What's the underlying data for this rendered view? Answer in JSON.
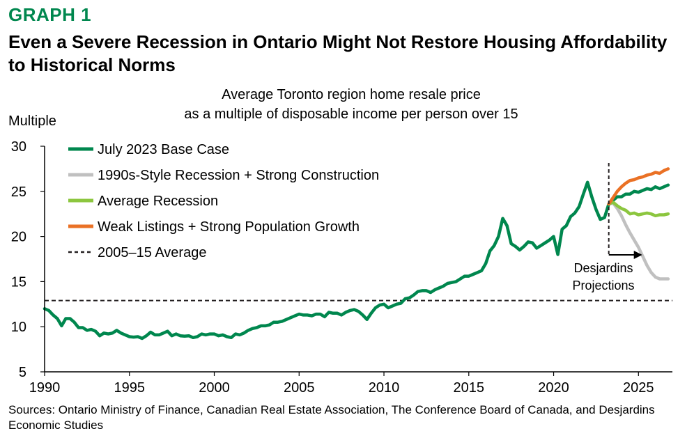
{
  "header": {
    "graph_label": "GRAPH 1",
    "headline": "Even a Severe Recession in Ontario Might Not Restore Housing Affordability to Historical Norms"
  },
  "chart_data": {
    "type": "line",
    "subtitle_lines": [
      "Average Toronto region home resale price",
      "as a multiple of disposable income per person over 15"
    ],
    "ylabel": "Multiple",
    "xlim": [
      1990,
      2027
    ],
    "ylim": [
      5,
      30
    ],
    "x_ticks": [
      1990,
      1995,
      2000,
      2005,
      2010,
      2015,
      2020,
      2025
    ],
    "y_ticks": [
      5,
      10,
      15,
      20,
      25,
      30
    ],
    "grid": false,
    "legend_position": "top-left",
    "reference_line": {
      "name": "2005–15 Average",
      "value": 12.9,
      "style": "dashed",
      "color": "#231f20"
    },
    "projection_marker": {
      "x": 2023.25,
      "label_lines": [
        "Desjardins",
        "Projections"
      ]
    },
    "series": [
      {
        "name": "July 2023 Base Case",
        "color": "#00874e",
        "points": [
          [
            1990.0,
            12.0
          ],
          [
            1990.25,
            11.8
          ],
          [
            1990.5,
            11.3
          ],
          [
            1990.75,
            10.9
          ],
          [
            1991.0,
            10.1
          ],
          [
            1991.25,
            10.9
          ],
          [
            1991.5,
            10.9
          ],
          [
            1991.75,
            10.5
          ],
          [
            1992.0,
            9.9
          ],
          [
            1992.25,
            9.9
          ],
          [
            1992.5,
            9.6
          ],
          [
            1992.75,
            9.7
          ],
          [
            1993.0,
            9.5
          ],
          [
            1993.25,
            9.0
          ],
          [
            1993.5,
            9.3
          ],
          [
            1993.75,
            9.2
          ],
          [
            1994.0,
            9.3
          ],
          [
            1994.25,
            9.6
          ],
          [
            1994.5,
            9.3
          ],
          [
            1994.75,
            9.1
          ],
          [
            1995.0,
            8.9
          ],
          [
            1995.25,
            8.85
          ],
          [
            1995.5,
            8.9
          ],
          [
            1995.75,
            8.7
          ],
          [
            1996.0,
            9.0
          ],
          [
            1996.25,
            9.4
          ],
          [
            1996.5,
            9.1
          ],
          [
            1996.75,
            9.1
          ],
          [
            1997.0,
            9.3
          ],
          [
            1997.25,
            9.5
          ],
          [
            1997.5,
            9.0
          ],
          [
            1997.75,
            9.2
          ],
          [
            1998.0,
            9.0
          ],
          [
            1998.25,
            8.95
          ],
          [
            1998.5,
            9.0
          ],
          [
            1998.75,
            8.8
          ],
          [
            1999.0,
            8.9
          ],
          [
            1999.25,
            9.2
          ],
          [
            1999.5,
            9.1
          ],
          [
            1999.75,
            9.2
          ],
          [
            2000.0,
            9.2
          ],
          [
            2000.25,
            9.0
          ],
          [
            2000.5,
            9.1
          ],
          [
            2000.75,
            8.9
          ],
          [
            2001.0,
            8.8
          ],
          [
            2001.25,
            9.2
          ],
          [
            2001.5,
            9.1
          ],
          [
            2001.75,
            9.3
          ],
          [
            2002.0,
            9.6
          ],
          [
            2002.25,
            9.8
          ],
          [
            2002.5,
            9.9
          ],
          [
            2002.75,
            10.1
          ],
          [
            2003.0,
            10.1
          ],
          [
            2003.25,
            10.2
          ],
          [
            2003.5,
            10.5
          ],
          [
            2003.75,
            10.5
          ],
          [
            2004.0,
            10.6
          ],
          [
            2004.25,
            10.8
          ],
          [
            2004.5,
            11.0
          ],
          [
            2004.75,
            11.2
          ],
          [
            2005.0,
            11.4
          ],
          [
            2005.25,
            11.3
          ],
          [
            2005.5,
            11.3
          ],
          [
            2005.75,
            11.2
          ],
          [
            2006.0,
            11.4
          ],
          [
            2006.25,
            11.4
          ],
          [
            2006.5,
            11.1
          ],
          [
            2006.75,
            11.6
          ],
          [
            2007.0,
            11.5
          ],
          [
            2007.25,
            11.5
          ],
          [
            2007.5,
            11.3
          ],
          [
            2007.75,
            11.6
          ],
          [
            2008.0,
            11.8
          ],
          [
            2008.25,
            11.9
          ],
          [
            2008.5,
            11.7
          ],
          [
            2008.75,
            11.3
          ],
          [
            2009.0,
            10.8
          ],
          [
            2009.25,
            11.5
          ],
          [
            2009.5,
            12.1
          ],
          [
            2009.75,
            12.4
          ],
          [
            2010.0,
            12.5
          ],
          [
            2010.25,
            12.1
          ],
          [
            2010.5,
            12.3
          ],
          [
            2010.75,
            12.5
          ],
          [
            2011.0,
            12.6
          ],
          [
            2011.25,
            13.1
          ],
          [
            2011.5,
            13.2
          ],
          [
            2011.75,
            13.5
          ],
          [
            2012.0,
            13.9
          ],
          [
            2012.25,
            14.0
          ],
          [
            2012.5,
            14.0
          ],
          [
            2012.75,
            13.8
          ],
          [
            2013.0,
            14.1
          ],
          [
            2013.25,
            14.3
          ],
          [
            2013.5,
            14.5
          ],
          [
            2013.75,
            14.8
          ],
          [
            2014.0,
            14.9
          ],
          [
            2014.25,
            15.0
          ],
          [
            2014.5,
            15.3
          ],
          [
            2014.75,
            15.6
          ],
          [
            2015.0,
            15.6
          ],
          [
            2015.25,
            15.8
          ],
          [
            2015.5,
            16.0
          ],
          [
            2015.75,
            16.2
          ],
          [
            2016.0,
            17.0
          ],
          [
            2016.25,
            18.4
          ],
          [
            2016.5,
            19.0
          ],
          [
            2016.75,
            20.0
          ],
          [
            2017.0,
            22.0
          ],
          [
            2017.25,
            21.2
          ],
          [
            2017.5,
            19.2
          ],
          [
            2017.75,
            18.9
          ],
          [
            2018.0,
            18.5
          ],
          [
            2018.25,
            18.9
          ],
          [
            2018.5,
            19.4
          ],
          [
            2018.75,
            19.3
          ],
          [
            2019.0,
            18.7
          ],
          [
            2019.25,
            19.0
          ],
          [
            2019.5,
            19.3
          ],
          [
            2019.75,
            19.6
          ],
          [
            2020.0,
            20.0
          ],
          [
            2020.25,
            18.0
          ],
          [
            2020.5,
            20.8
          ],
          [
            2020.75,
            21.2
          ],
          [
            2021.0,
            22.2
          ],
          [
            2021.25,
            22.6
          ],
          [
            2021.5,
            23.3
          ],
          [
            2021.75,
            24.7
          ],
          [
            2022.0,
            26.0
          ],
          [
            2022.25,
            24.4
          ],
          [
            2022.5,
            23.0
          ],
          [
            2022.75,
            21.9
          ],
          [
            2023.0,
            22.1
          ],
          [
            2023.25,
            23.6
          ],
          [
            2023.5,
            24.0
          ],
          [
            2023.75,
            24.4
          ],
          [
            2024.0,
            24.4
          ],
          [
            2024.25,
            24.7
          ],
          [
            2024.5,
            24.7
          ],
          [
            2024.75,
            25.0
          ],
          [
            2025.0,
            24.9
          ],
          [
            2025.25,
            25.1
          ],
          [
            2025.5,
            25.3
          ],
          [
            2025.75,
            25.2
          ],
          [
            2026.0,
            25.5
          ],
          [
            2026.25,
            25.3
          ],
          [
            2026.5,
            25.5
          ],
          [
            2026.75,
            25.7
          ]
        ]
      },
      {
        "name": "1990s-Style Recession + Strong Construction",
        "color": "#c0c0c0",
        "points": [
          [
            2023.25,
            23.6
          ],
          [
            2023.5,
            23.7
          ],
          [
            2023.75,
            23.1
          ],
          [
            2024.0,
            22.3
          ],
          [
            2024.25,
            21.3
          ],
          [
            2024.5,
            20.4
          ],
          [
            2024.75,
            19.6
          ],
          [
            2025.0,
            18.8
          ],
          [
            2025.25,
            17.8
          ],
          [
            2025.5,
            16.8
          ],
          [
            2025.75,
            16.0
          ],
          [
            2026.0,
            15.5
          ],
          [
            2026.25,
            15.3
          ],
          [
            2026.5,
            15.3
          ],
          [
            2026.75,
            15.3
          ]
        ]
      },
      {
        "name": "Average Recession",
        "color": "#8cc63f",
        "points": [
          [
            2023.25,
            23.6
          ],
          [
            2023.5,
            23.8
          ],
          [
            2023.75,
            23.4
          ],
          [
            2024.0,
            23.1
          ],
          [
            2024.25,
            22.9
          ],
          [
            2024.5,
            22.5
          ],
          [
            2024.75,
            22.6
          ],
          [
            2025.0,
            22.4
          ],
          [
            2025.25,
            22.5
          ],
          [
            2025.5,
            22.6
          ],
          [
            2025.75,
            22.5
          ],
          [
            2026.0,
            22.3
          ],
          [
            2026.25,
            22.4
          ],
          [
            2026.5,
            22.4
          ],
          [
            2026.75,
            22.5
          ]
        ]
      },
      {
        "name": "Weak Listings + Strong Population Growth",
        "color": "#ea7125",
        "points": [
          [
            2023.25,
            23.6
          ],
          [
            2023.5,
            24.3
          ],
          [
            2023.75,
            25.0
          ],
          [
            2024.0,
            25.5
          ],
          [
            2024.25,
            25.9
          ],
          [
            2024.5,
            26.2
          ],
          [
            2024.75,
            26.3
          ],
          [
            2025.0,
            26.5
          ],
          [
            2025.25,
            26.6
          ],
          [
            2025.5,
            26.8
          ],
          [
            2025.75,
            26.9
          ],
          [
            2026.0,
            27.1
          ],
          [
            2026.25,
            27.0
          ],
          [
            2026.5,
            27.3
          ],
          [
            2026.75,
            27.5
          ]
        ]
      }
    ]
  },
  "footer": {
    "sources": "Sources: Ontario Ministry of Finance, Canadian Real Estate Association, The Conference Board of Canada, and Desjardins Economic Studies"
  }
}
